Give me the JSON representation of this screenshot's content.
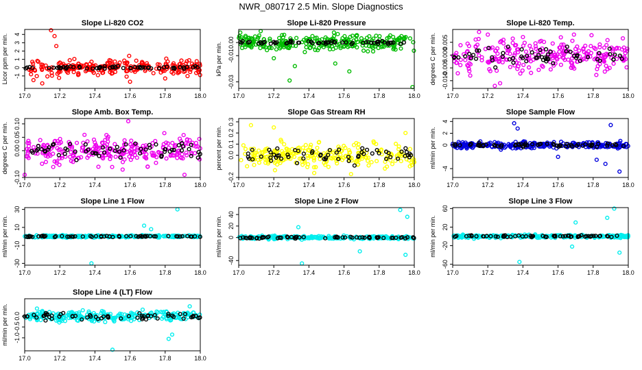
{
  "page": {
    "title": "NWR_080717  2.5 Min. Slope Diagnostics"
  },
  "colors": {
    "black": "#000000"
  },
  "chart_data": [
    {
      "type": "scatter",
      "title": "Slope Li-820 CO2",
      "ylabel": "Licor ppm per min.",
      "color": "#ff0000",
      "xlim": [
        17.0,
        18.0
      ],
      "ylim": [
        -2.5,
        4.6
      ],
      "xticks": [
        "17.0",
        "17.2",
        "17.4",
        "17.6",
        "17.8",
        "18.0"
      ],
      "xtick_values": [
        17.0,
        17.2,
        17.4,
        17.6,
        17.8,
        18.0
      ],
      "yticks": [
        "-1",
        "0",
        "1",
        "2",
        "3",
        "4"
      ],
      "ytick_values": [
        -1,
        0,
        1,
        2,
        3,
        4
      ],
      "spread": 0.9,
      "outliers": [
        [
          17.15,
          4.5
        ],
        [
          17.17,
          3.8
        ],
        [
          17.18,
          2.6
        ],
        [
          17.1,
          -1.9
        ],
        [
          17.05,
          -1.5
        ],
        [
          17.6,
          -1.7
        ],
        [
          17.8,
          -1.3
        ]
      ],
      "black_spread": 0.15,
      "seed": 11
    },
    {
      "type": "scatter",
      "title": "Slope Li-820 Pressure",
      "ylabel": "kPa per min.",
      "color": "#00bb00",
      "xlim": [
        17.0,
        18.0
      ],
      "ylim": [
        -0.035,
        0.01
      ],
      "xticks": [
        "17.0",
        "17.2",
        "17.4",
        "17.6",
        "17.8",
        "18.0"
      ],
      "xtick_values": [
        17.0,
        17.2,
        17.4,
        17.6,
        17.8,
        18.0
      ],
      "yticks": [
        "-0.03",
        "-0.01",
        "0.00"
      ],
      "ytick_values": [
        -0.03,
        -0.01,
        0.0
      ],
      "spread": 0.006,
      "outliers": [
        [
          17.29,
          -0.029
        ],
        [
          17.99,
          -0.034
        ],
        [
          17.63,
          -0.022
        ],
        [
          17.32,
          -0.018
        ],
        [
          17.55,
          -0.016
        ],
        [
          17.2,
          -0.012
        ]
      ],
      "black_spread": 0.001,
      "seed": 23
    },
    {
      "type": "scatter",
      "title": "Slope Li-820 Temp.",
      "ylabel": "degrees C per min.",
      "color": "#ee00ee",
      "xlim": [
        17.0,
        18.0
      ],
      "ylim": [
        -0.013,
        0.01
      ],
      "xticks": [
        "17.0",
        "17.2",
        "17.4",
        "17.6",
        "17.8",
        "18.0"
      ],
      "xtick_values": [
        17.0,
        17.2,
        17.4,
        17.6,
        17.8,
        18.0
      ],
      "yticks": [
        "-0.010",
        "-0.005",
        "0.000",
        "0.005"
      ],
      "ytick_values": [
        -0.01,
        -0.005,
        0.0,
        0.005
      ],
      "spread": 0.006,
      "outliers": [
        [
          17.15,
          0.009
        ],
        [
          17.2,
          0.008
        ],
        [
          17.24,
          -0.012
        ],
        [
          17.27,
          -0.011
        ],
        [
          17.1,
          -0.008
        ]
      ],
      "black_spread": 0.003,
      "seed": 37
    },
    {
      "type": "scatter",
      "title": "Slope Amb. Box Temp.",
      "ylabel": "degrees C per min.",
      "color": "#ee00ee",
      "xlim": [
        17.0,
        18.0
      ],
      "ylim": [
        -0.1,
        0.12
      ],
      "xticks": [
        "17.0",
        "17.2",
        "17.4",
        "17.6",
        "17.8",
        "18.0"
      ],
      "xtick_values": [
        17.0,
        17.2,
        17.4,
        17.6,
        17.8,
        18.0
      ],
      "yticks": [
        "-0.10",
        "0.00",
        "0.05",
        "0.10"
      ],
      "ytick_values": [
        -0.1,
        0.0,
        0.05,
        0.1
      ],
      "spread": 0.045,
      "outliers": [
        [
          17.59,
          0.11
        ],
        [
          17.91,
          -0.09
        ],
        [
          17.0,
          -0.09
        ],
        [
          17.42,
          -0.06
        ],
        [
          17.7,
          -0.06
        ]
      ],
      "black_spread": 0.03,
      "seed": 41
    },
    {
      "type": "scatter",
      "title": "Slope Gas Stream RH",
      "ylabel": "percent per min.",
      "color": "#ffff00",
      "xlim": [
        17.0,
        18.0
      ],
      "ylim": [
        -0.2,
        0.33
      ],
      "xticks": [
        "17.0",
        "17.2",
        "17.4",
        "17.6",
        "17.8",
        "18.0"
      ],
      "xtick_values": [
        17.0,
        17.2,
        17.4,
        17.6,
        17.8,
        18.0
      ],
      "yticks": [
        "-0.2",
        "0.0",
        "0.1",
        "0.2",
        "0.3"
      ],
      "ytick_values": [
        -0.2,
        0.0,
        0.1,
        0.2,
        0.3
      ],
      "spread": 0.1,
      "outliers": [
        [
          17.07,
          0.27
        ],
        [
          17.43,
          -0.16
        ],
        [
          17.64,
          -0.17
        ],
        [
          17.95,
          0.2
        ],
        [
          17.2,
          0.25
        ]
      ],
      "black_spread": 0.06,
      "seed": 53
    },
    {
      "type": "scatter",
      "title": "Slope Sample Flow",
      "ylabel": "ml/min per min.",
      "color": "#0000dd",
      "xlim": [
        17.0,
        18.0
      ],
      "ylim": [
        -5.5,
        4.5
      ],
      "xticks": [
        "17.0",
        "17.2",
        "17.4",
        "17.6",
        "17.8",
        "18.0"
      ],
      "xtick_values": [
        17.0,
        17.2,
        17.4,
        17.6,
        17.8,
        18.0
      ],
      "yticks": [
        "-4",
        "0",
        "2",
        "4"
      ],
      "ytick_values": [
        -4,
        0,
        2,
        4
      ],
      "spread": 0.5,
      "outliers": [
        [
          17.35,
          3.7
        ],
        [
          17.37,
          2.8
        ],
        [
          17.87,
          -3.2
        ],
        [
          17.82,
          -2.5
        ],
        [
          17.9,
          3.4
        ],
        [
          17.95,
          -4.5
        ],
        [
          17.6,
          -2.0
        ]
      ],
      "black_spread": 0.3,
      "seed": 67
    },
    {
      "type": "scatter",
      "title": "Slope Line 1 Flow",
      "ylabel": "ml/min per min.",
      "color": "#00eeee",
      "xlim": [
        17.0,
        18.0
      ],
      "ylim": [
        -32,
        32
      ],
      "xticks": [
        "17.0",
        "17.2",
        "17.4",
        "17.6",
        "17.8",
        "18.0"
      ],
      "xtick_values": [
        17.0,
        17.2,
        17.4,
        17.6,
        17.8,
        18.0
      ],
      "yticks": [
        "-30",
        "-10",
        "10",
        "30"
      ],
      "ytick_values": [
        -30,
        -10,
        10,
        30
      ],
      "spread": 1.2,
      "outliers": [
        [
          17.38,
          -30
        ],
        [
          17.87,
          30
        ],
        [
          17.68,
          12
        ],
        [
          17.72,
          8
        ]
      ],
      "black_spread": 0.6,
      "seed": 71
    },
    {
      "type": "scatter",
      "title": "Slope Line 2 Flow",
      "ylabel": "ml/min per min.",
      "color": "#00eeee",
      "xlim": [
        17.0,
        18.0
      ],
      "ylim": [
        -48,
        52
      ],
      "xticks": [
        "17.0",
        "17.2",
        "17.4",
        "17.6",
        "17.8",
        "18.0"
      ],
      "xtick_values": [
        17.0,
        17.2,
        17.4,
        17.6,
        17.8,
        18.0
      ],
      "yticks": [
        "-40",
        "0",
        "20",
        "40"
      ],
      "ytick_values": [
        -40,
        0,
        20,
        40
      ],
      "spread": 2.5,
      "outliers": [
        [
          17.36,
          -45
        ],
        [
          17.34,
          18
        ],
        [
          17.69,
          -24
        ],
        [
          17.92,
          48
        ],
        [
          17.95,
          -30
        ],
        [
          17.96,
          36
        ]
      ],
      "black_spread": 1.5,
      "seed": 83
    },
    {
      "type": "scatter",
      "title": "Slope Line 3 Flow",
      "ylabel": "ml/min per min.",
      "color": "#00eeee",
      "xlim": [
        17.0,
        18.0
      ],
      "ylim": [
        -62,
        62
      ],
      "xticks": [
        "17.0",
        "17.2",
        "17.4",
        "17.6",
        "17.8",
        "18.0"
      ],
      "xtick_values": [
        17.0,
        17.2,
        17.4,
        17.6,
        17.8,
        18.0
      ],
      "yticks": [
        "-60",
        "-20",
        "20",
        "60"
      ],
      "ytick_values": [
        -60,
        -20,
        20,
        60
      ],
      "spread": 3,
      "outliers": [
        [
          17.38,
          -55
        ],
        [
          17.68,
          -22
        ],
        [
          17.7,
          30
        ],
        [
          17.92,
          60
        ],
        [
          17.95,
          -35
        ],
        [
          17.88,
          40
        ]
      ],
      "black_spread": 2,
      "seed": 97
    },
    {
      "type": "scatter",
      "title": "Slope Line 4 (LT) Flow",
      "ylabel": "ml/min per min.",
      "color": "#00eeee",
      "xlim": [
        17.0,
        18.0
      ],
      "ylim": [
        -1.6,
        0.8
      ],
      "xticks": [
        "17.0",
        "17.2",
        "17.4",
        "17.6",
        "17.8",
        "18.0"
      ],
      "xtick_values": [
        17.0,
        17.2,
        17.4,
        17.6,
        17.8,
        18.0
      ],
      "yticks": [
        "-1.0",
        "-0.5",
        "0.0"
      ],
      "ytick_values": [
        -1.0,
        -0.5,
        0.0
      ],
      "spread": 0.22,
      "outliers": [
        [
          17.5,
          -1.55
        ],
        [
          17.82,
          -1.05
        ],
        [
          17.84,
          -0.85
        ],
        [
          17.94,
          0.45
        ],
        [
          17.07,
          0.35
        ]
      ],
      "black_spread": 0.15,
      "seed": 101
    }
  ]
}
